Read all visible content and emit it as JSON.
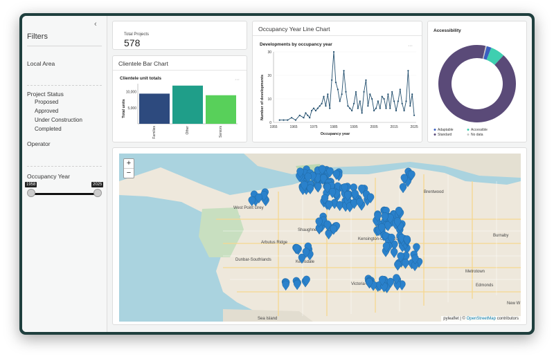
{
  "sidebar": {
    "collapse_icon": "chevron-left-icon",
    "title": "Filters",
    "local_area_label": "Local Area",
    "project_status_label": "Project Status",
    "statuses": [
      "Proposed",
      "Approved",
      "Under Construction",
      "Completed"
    ],
    "operator_label": "Operator",
    "occupancy_year_label": "Occupancy Year",
    "year_min": "1958",
    "year_max": "2025"
  },
  "total_projects": {
    "label": "Total Projects",
    "value": "578"
  },
  "clientele_card": {
    "title": "Clientele Bar Chart",
    "menu_icon": "more-horizontal-icon"
  },
  "occupancy_card": {
    "title": "Occupancy Year Line Chart",
    "menu_icon": "more-horizontal-icon"
  },
  "accessibility_card": {
    "title": "Accessibility"
  },
  "map": {
    "zoom_in": "+",
    "zoom_out": "−",
    "attribution_prefix": "pyleaflet | © ",
    "attribution_link": "OpenStreetMap",
    "attribution_suffix": " contributors",
    "marker_color": "#2a81cb",
    "marker_icon": "map-marker-icon",
    "place_labels": [
      "West Point Grey",
      "Shaughnessy",
      "Arbutus Ridge",
      "Kerrisdale",
      "Dunbar-Southlands",
      "Kensington-Cedar Cottage",
      "Victoria-Fraserview",
      "Burnaby",
      "Metrotown",
      "Edmonds",
      "Brentwood",
      "Sea Island",
      "New W"
    ]
  },
  "chart_data": [
    {
      "type": "bar",
      "title": "Clientele unit totals",
      "xlabel": "",
      "ylabel": "Total units",
      "categories": [
        "Families",
        "Other",
        "Seniors"
      ],
      "values": [
        9400,
        11900,
        8900
      ],
      "ylim": [
        0,
        12500
      ],
      "yticks": [
        5000,
        10000
      ],
      "ytick_labels": [
        "5,000",
        "10,000"
      ],
      "colors": [
        "#2d4a7e",
        "#1f9e89",
        "#58d05a"
      ]
    },
    {
      "type": "line",
      "title": "Developments by occupancy year",
      "xlabel": "Occupancy year",
      "ylabel": "Number of developments",
      "x": [
        1958,
        1960,
        1962,
        1964,
        1966,
        1968,
        1970,
        1971,
        1972,
        1973,
        1974,
        1975,
        1976,
        1977,
        1978,
        1979,
        1980,
        1981,
        1982,
        1983,
        1984,
        1985,
        1986,
        1987,
        1988,
        1989,
        1990,
        1991,
        1992,
        1993,
        1994,
        1995,
        1996,
        1997,
        1998,
        1999,
        2000,
        2001,
        2002,
        2003,
        2004,
        2005,
        2006,
        2007,
        2008,
        2009,
        2010,
        2011,
        2012,
        2013,
        2014,
        2015,
        2016,
        2017,
        2018,
        2019,
        2020,
        2021,
        2022,
        2023,
        2024,
        2025
      ],
      "y": [
        1,
        1,
        1,
        2,
        1,
        3,
        2,
        4,
        3,
        2,
        5,
        6,
        5,
        6,
        7,
        8,
        11,
        7,
        12,
        6,
        18,
        30,
        17,
        14,
        9,
        12,
        22,
        13,
        7,
        6,
        5,
        8,
        13,
        6,
        9,
        4,
        13,
        18,
        7,
        12,
        10,
        5,
        6,
        9,
        6,
        11,
        10,
        6,
        12,
        6,
        13,
        9,
        5,
        9,
        14,
        8,
        5,
        9,
        22,
        7,
        12,
        3
      ],
      "xlim": [
        1955,
        2026
      ],
      "ylim": [
        0,
        30
      ],
      "xticks": [
        1955,
        1965,
        1975,
        1985,
        1995,
        2005,
        2015,
        2025
      ],
      "yticks": [
        0,
        10,
        20,
        30
      ],
      "color": "#234f6e"
    },
    {
      "type": "pie",
      "title": "Accessibility",
      "categories": [
        "Adaptable",
        "Accessible",
        "Standard",
        "No data"
      ],
      "values": [
        2,
        6,
        92,
        0.5
      ],
      "colors": [
        "#3b5fc0",
        "#3fcfb0",
        "#5a4a78",
        "#c8c8c8"
      ],
      "legend_position": "bottom"
    }
  ]
}
